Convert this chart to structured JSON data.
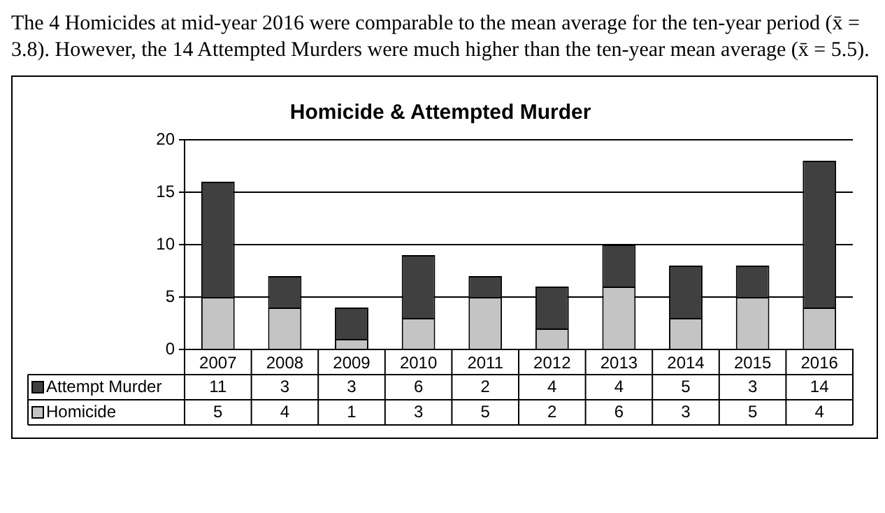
{
  "chart_data": {
    "type": "bar",
    "title": "Homicide & Attempted Murder",
    "annotations": [
      "The 4 Homicides at mid-year 2016 were comparable to the mean average for the ten-year period (x̄ = 3.8).  However, the 14 Attempted Murders were much higher than the ten-year mean average (x̄ = 5.5)."
    ],
    "categories": [
      "2007",
      "2008",
      "2009",
      "2010",
      "2011",
      "2012",
      "2013",
      "2014",
      "2015",
      "2016"
    ],
    "series": [
      {
        "name": "Homicide",
        "color": "#c4c4c4",
        "values": [
          5,
          4,
          1,
          3,
          5,
          2,
          6,
          3,
          5,
          4
        ]
      },
      {
        "name": "Attempt Murder",
        "color": "#404040",
        "values": [
          11,
          3,
          3,
          6,
          2,
          4,
          4,
          5,
          3,
          14
        ]
      }
    ],
    "stacked": true,
    "ylim": [
      0,
      20
    ],
    "yticks": [
      0,
      5,
      10,
      15,
      20
    ],
    "grid": "y",
    "legend": "bottom left",
    "data_labels": true
  }
}
